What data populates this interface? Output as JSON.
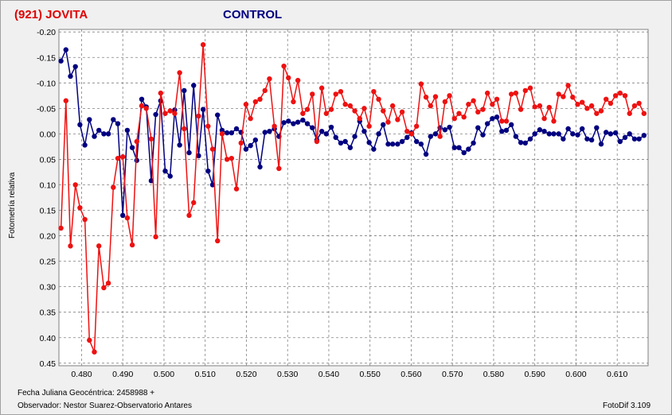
{
  "header": {
    "object_label": "(921) JOVITA",
    "comparison_label": "CONTROL"
  },
  "footer": {
    "jd_label": "Fecha Juliana Geocéntrica: 2458988 +",
    "observer_label": "Observador: Nestor Suarez-Observatorio Antares",
    "software_label": "FotoDif 3.109"
  },
  "colors": {
    "object": "#ee1111",
    "control": "#000080",
    "grid": "#808080",
    "background": "#ffffff"
  },
  "chart_data": {
    "type": "line",
    "title": "",
    "xlabel": "",
    "ylabel": "Fotometría relativa",
    "xlim": [
      0.4745,
      0.6175
    ],
    "ylim": [
      -0.205,
      0.455
    ],
    "y_inverted": true,
    "grid": true,
    "x_ticks": [
      0.48,
      0.49,
      0.5,
      0.51,
      0.52,
      0.53,
      0.54,
      0.55,
      0.56,
      0.57,
      0.58,
      0.59,
      0.6,
      0.61
    ],
    "x_tick_labels": [
      "0.480",
      "0.490",
      "0.500",
      "0.510",
      "0.520",
      "0.530",
      "0.540",
      "0.550",
      "0.560",
      "0.570",
      "0.580",
      "0.590",
      "0.600",
      "0.610"
    ],
    "y_ticks": [
      -0.2,
      -0.15,
      -0.1,
      -0.05,
      0.0,
      0.05,
      0.1,
      0.15,
      0.2,
      0.25,
      0.3,
      0.35,
      0.4,
      0.45
    ],
    "y_tick_labels": [
      "-0.20",
      "-0.15",
      "-0.10",
      "-0.05",
      "0.00",
      "0.05",
      "0.10",
      "0.15",
      "0.20",
      "0.25",
      "0.30",
      "0.35",
      "0.40",
      "0.45"
    ],
    "series": [
      {
        "color": "#000080",
        "x": [
          0.475,
          0.4762,
          0.4773,
          0.4785,
          0.4796,
          0.4808,
          0.4819,
          0.4831,
          0.4842,
          0.4854,
          0.4865,
          0.4877,
          0.4888,
          0.49,
          0.4911,
          0.4923,
          0.4934,
          0.4946,
          0.4957,
          0.4969,
          0.498,
          0.4992,
          0.5003,
          0.5015,
          0.5026,
          0.5038,
          0.5049,
          0.5061,
          0.5072,
          0.5084,
          0.5095,
          0.5107,
          0.5118,
          0.513,
          0.5141,
          0.5153,
          0.5164,
          0.5176,
          0.5187,
          0.5199,
          0.521,
          0.5222,
          0.5233,
          0.5245,
          0.5256,
          0.5268,
          0.5279,
          0.5291,
          0.5302,
          0.5314,
          0.5325,
          0.5337,
          0.5348,
          0.536,
          0.5371,
          0.5383,
          0.5394,
          0.5406,
          0.5417,
          0.5429,
          0.544,
          0.5452,
          0.5463,
          0.5475,
          0.5486,
          0.5498,
          0.5509,
          0.5521,
          0.5532,
          0.5544,
          0.5555,
          0.5567,
          0.5578,
          0.559,
          0.5601,
          0.5613,
          0.5624,
          0.5636,
          0.5647,
          0.5659,
          0.567,
          0.5682,
          0.5693,
          0.5705,
          0.5716,
          0.5728,
          0.5739,
          0.5751,
          0.5762,
          0.5774,
          0.5785,
          0.5797,
          0.5808,
          0.582,
          0.5831,
          0.5843,
          0.5854,
          0.5866,
          0.5877,
          0.5889,
          0.59,
          0.5912,
          0.5923,
          0.5935,
          0.5946,
          0.5958,
          0.5969,
          0.5981,
          0.5992,
          0.6004,
          0.6015,
          0.6027,
          0.6038,
          0.605,
          0.6061,
          0.6073,
          0.6084,
          0.6096,
          0.6107,
          0.6119,
          0.613,
          0.6142,
          0.6153,
          0.6165
        ],
        "values": [
          -0.143,
          -0.165,
          -0.113,
          -0.132,
          -0.018,
          0.022,
          -0.028,
          0.005,
          -0.007,
          0.0,
          0.0,
          -0.028,
          -0.02,
          0.16,
          -0.007,
          0.027,
          0.052,
          -0.068,
          -0.053,
          0.092,
          -0.038,
          -0.065,
          0.073,
          0.083,
          -0.047,
          0.022,
          -0.085,
          0.037,
          -0.095,
          0.043,
          -0.048,
          0.073,
          0.1,
          -0.037,
          -0.007,
          -0.002,
          -0.002,
          -0.01,
          -0.003,
          0.03,
          0.023,
          0.012,
          0.065,
          -0.003,
          -0.005,
          -0.01,
          0.005,
          -0.022,
          -0.025,
          -0.02,
          -0.023,
          -0.027,
          -0.02,
          -0.012,
          0.012,
          -0.005,
          0.0,
          -0.013,
          0.007,
          0.018,
          0.015,
          0.027,
          0.005,
          -0.025,
          -0.005,
          0.017,
          0.03,
          0.0,
          -0.018,
          0.02,
          0.02,
          0.02,
          0.015,
          0.007,
          -0.002,
          0.015,
          0.02,
          0.04,
          0.005,
          0.0,
          -0.012,
          -0.008,
          -0.013,
          0.027,
          0.027,
          0.037,
          0.03,
          0.018,
          -0.012,
          0.002,
          -0.02,
          -0.03,
          -0.033,
          -0.005,
          -0.007,
          -0.018,
          0.005,
          0.017,
          0.018,
          0.01,
          0.0,
          -0.008,
          -0.005,
          0.0,
          0.0,
          0.0,
          0.01,
          -0.01,
          0.0,
          0.002,
          -0.01,
          0.01,
          0.012,
          -0.012,
          0.02,
          -0.003,
          0.0,
          -0.002,
          0.015,
          0.007,
          0.0,
          0.01,
          0.01,
          0.003
        ]
      },
      {
        "color": "#ee1111",
        "x": [
          0.475,
          0.4762,
          0.4773,
          0.4785,
          0.4796,
          0.4808,
          0.4819,
          0.4831,
          0.4842,
          0.4854,
          0.4865,
          0.4877,
          0.4888,
          0.49,
          0.4911,
          0.4923,
          0.4934,
          0.4946,
          0.4957,
          0.4969,
          0.498,
          0.4992,
          0.5003,
          0.5015,
          0.5026,
          0.5038,
          0.5049,
          0.5061,
          0.5072,
          0.5084,
          0.5095,
          0.5107,
          0.5118,
          0.513,
          0.5141,
          0.5153,
          0.5164,
          0.5176,
          0.5187,
          0.5199,
          0.521,
          0.5222,
          0.5233,
          0.5245,
          0.5256,
          0.5268,
          0.5279,
          0.5291,
          0.5302,
          0.5314,
          0.5325,
          0.5337,
          0.5348,
          0.536,
          0.5371,
          0.5383,
          0.5394,
          0.5406,
          0.5417,
          0.5429,
          0.544,
          0.5452,
          0.5463,
          0.5475,
          0.5486,
          0.5498,
          0.5509,
          0.5521,
          0.5532,
          0.5544,
          0.5555,
          0.5567,
          0.5578,
          0.559,
          0.5601,
          0.5613,
          0.5624,
          0.5636,
          0.5647,
          0.5659,
          0.567,
          0.5682,
          0.5693,
          0.5705,
          0.5716,
          0.5728,
          0.5739,
          0.5751,
          0.5762,
          0.5774,
          0.5785,
          0.5797,
          0.5808,
          0.582,
          0.5831,
          0.5843,
          0.5854,
          0.5866,
          0.5877,
          0.5889,
          0.59,
          0.5912,
          0.5923,
          0.5935,
          0.5946,
          0.5958,
          0.5969,
          0.5981,
          0.5992,
          0.6004,
          0.6015,
          0.6027,
          0.6038,
          0.605,
          0.6061,
          0.6073,
          0.6084,
          0.6096,
          0.6107,
          0.6119,
          0.613,
          0.6142,
          0.6153,
          0.6165
        ],
        "values": [
          0.185,
          -0.065,
          0.22,
          0.1,
          0.145,
          0.168,
          0.405,
          0.428,
          0.22,
          0.302,
          0.293,
          0.105,
          0.048,
          0.045,
          0.165,
          0.218,
          0.015,
          -0.055,
          -0.05,
          0.01,
          0.202,
          -0.08,
          -0.04,
          -0.045,
          -0.04,
          -0.12,
          -0.01,
          0.16,
          0.135,
          -0.035,
          -0.175,
          -0.015,
          0.03,
          0.21,
          0.0,
          0.05,
          0.048,
          0.108,
          0.018,
          -0.058,
          -0.03,
          -0.063,
          -0.068,
          -0.085,
          -0.108,
          -0.015,
          0.068,
          -0.133,
          -0.11,
          -0.063,
          -0.105,
          -0.04,
          -0.048,
          -0.078,
          0.015,
          -0.09,
          -0.04,
          -0.048,
          -0.078,
          -0.083,
          -0.058,
          -0.055,
          -0.045,
          -0.03,
          -0.05,
          -0.015,
          -0.083,
          -0.068,
          -0.045,
          -0.023,
          -0.055,
          -0.028,
          -0.043,
          -0.005,
          0.0,
          -0.015,
          -0.098,
          -0.072,
          -0.055,
          -0.073,
          0.005,
          -0.063,
          -0.075,
          -0.03,
          -0.04,
          -0.033,
          -0.058,
          -0.065,
          -0.043,
          -0.048,
          -0.08,
          -0.058,
          -0.068,
          -0.025,
          -0.025,
          -0.078,
          -0.08,
          -0.048,
          -0.085,
          -0.09,
          -0.053,
          -0.055,
          -0.03,
          -0.052,
          -0.025,
          -0.078,
          -0.073,
          -0.095,
          -0.072,
          -0.058,
          -0.062,
          -0.05,
          -0.055,
          -0.04,
          -0.045,
          -0.068,
          -0.06,
          -0.075,
          -0.08,
          -0.075,
          -0.04,
          -0.055,
          -0.06,
          -0.04
        ]
      }
    ]
  }
}
